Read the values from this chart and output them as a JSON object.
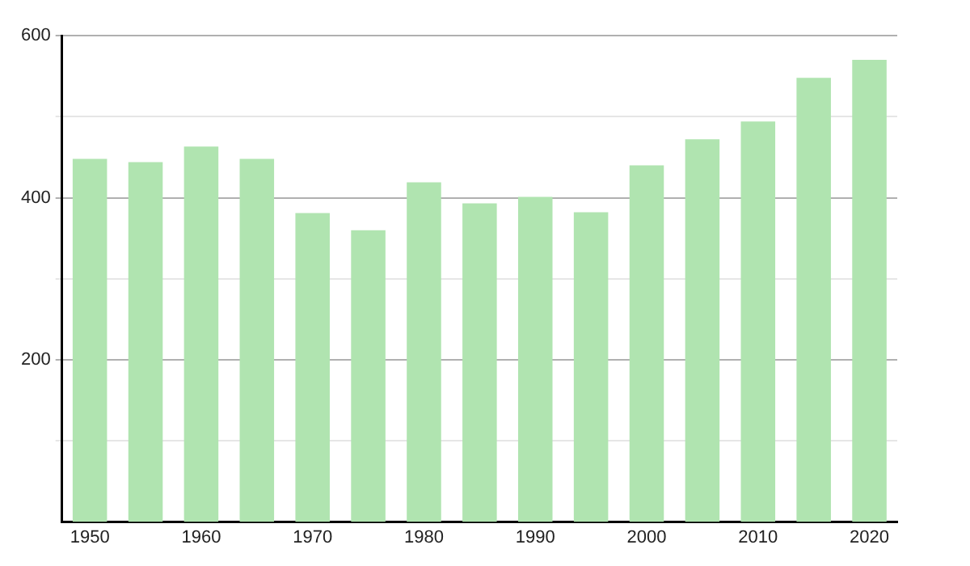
{
  "chart_data": {
    "type": "bar",
    "categories": [
      "1950",
      null,
      "1960",
      null,
      "1970",
      null,
      "1980",
      null,
      "1990",
      null,
      "2000",
      null,
      "2010",
      null,
      "2020"
    ],
    "values": [
      448,
      444,
      463,
      448,
      381,
      360,
      419,
      393,
      401,
      382,
      440,
      472,
      494,
      548,
      570
    ],
    "color": "#b0e4b0",
    "ylim": [
      0,
      600
    ],
    "yticks": [
      {
        "value": 100,
        "label": null
      },
      200,
      {
        "value": 300,
        "label": null
      },
      400,
      {
        "value": 500,
        "label": null
      },
      600
    ],
    "grid": "y",
    "legend": false
  }
}
